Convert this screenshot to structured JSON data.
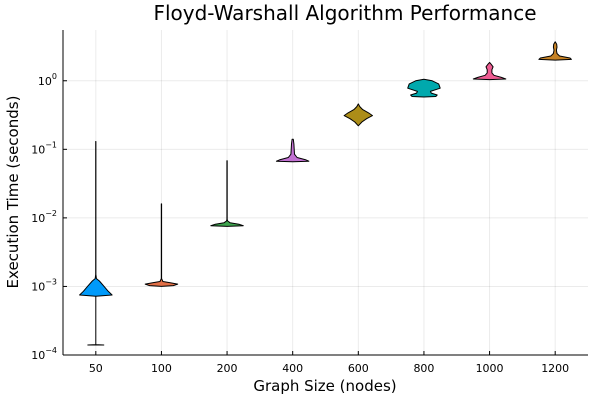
{
  "chart_data": {
    "type": "violin",
    "title": "Floyd-Warshall Algorithm Performance",
    "xlabel": "Graph Size (nodes)",
    "ylabel": "Execution Time (seconds)",
    "yscale": "log10",
    "ylim": [
      0.0001,
      5.5
    ],
    "grid": true,
    "legend": "none",
    "y_ticks": [
      {
        "value": 0.0001,
        "base": "10",
        "exp": "−4"
      },
      {
        "value": 0.001,
        "base": "10",
        "exp": "−3"
      },
      {
        "value": 0.01,
        "base": "10",
        "exp": "−2"
      },
      {
        "value": 0.1,
        "base": "10",
        "exp": "−1"
      },
      {
        "value": 1,
        "base": "10",
        "exp": "0"
      }
    ],
    "categories": [
      "50",
      "100",
      "200",
      "400",
      "600",
      "800",
      "1000",
      "1200"
    ],
    "violins": [
      {
        "category": "50",
        "color": "#009AFA",
        "min": 0.00014,
        "max": 0.13,
        "profile": [
          [
            0.00014,
            0.27
          ],
          [
            0.000142,
            0.0
          ],
          [
            0.00072,
            0.0
          ],
          [
            0.00075,
            0.55
          ],
          [
            0.00085,
            0.42
          ],
          [
            0.001,
            0.28
          ],
          [
            0.0012,
            0.12
          ],
          [
            0.0013,
            0.02
          ],
          [
            0.0015,
            0.004
          ],
          [
            0.13,
            0.004
          ]
        ]
      },
      {
        "category": "100",
        "color": "#E26F46",
        "min": 0.001,
        "max": 0.016,
        "profile": [
          [
            0.001,
            0.0
          ],
          [
            0.00103,
            0.4
          ],
          [
            0.00108,
            0.55
          ],
          [
            0.00113,
            0.3
          ],
          [
            0.00118,
            0.05
          ],
          [
            0.0013,
            0.005
          ],
          [
            0.016,
            0.004
          ]
        ]
      },
      {
        "category": "200",
        "color": "#3EA44E",
        "min": 0.0075,
        "max": 0.068,
        "profile": [
          [
            0.0075,
            0.0
          ],
          [
            0.0077,
            0.55
          ],
          [
            0.0081,
            0.4
          ],
          [
            0.0085,
            0.1
          ],
          [
            0.009,
            0.02
          ],
          [
            0.0095,
            0.006
          ],
          [
            0.068,
            0.004
          ]
        ]
      },
      {
        "category": "400",
        "color": "#C271D2",
        "min": 0.066,
        "max": 0.14,
        "profile": [
          [
            0.066,
            0.0
          ],
          [
            0.067,
            0.55
          ],
          [
            0.07,
            0.45
          ],
          [
            0.076,
            0.15
          ],
          [
            0.085,
            0.06
          ],
          [
            0.1,
            0.05
          ],
          [
            0.12,
            0.04
          ],
          [
            0.14,
            0.02
          ]
        ]
      },
      {
        "category": "600",
        "color": "#AC8D18",
        "min": 0.22,
        "max": 0.46,
        "profile": [
          [
            0.22,
            0.0
          ],
          [
            0.25,
            0.12
          ],
          [
            0.28,
            0.28
          ],
          [
            0.31,
            0.48
          ],
          [
            0.34,
            0.35
          ],
          [
            0.38,
            0.15
          ],
          [
            0.42,
            0.05
          ],
          [
            0.46,
            0.0
          ]
        ]
      },
      {
        "category": "800",
        "color": "#00A9AD",
        "min": 0.58,
        "max": 1.05,
        "profile": [
          [
            0.58,
            0.0
          ],
          [
            0.59,
            0.4
          ],
          [
            0.62,
            0.45
          ],
          [
            0.66,
            0.25
          ],
          [
            0.7,
            0.22
          ],
          [
            0.78,
            0.55
          ],
          [
            0.9,
            0.5
          ],
          [
            1.0,
            0.28
          ],
          [
            1.05,
            0.0
          ]
        ]
      },
      {
        "category": "1000",
        "color": "#ED5D92",
        "min": 1.04,
        "max": 1.85,
        "profile": [
          [
            1.04,
            0.0
          ],
          [
            1.06,
            0.55
          ],
          [
            1.12,
            0.4
          ],
          [
            1.2,
            0.15
          ],
          [
            1.3,
            0.08
          ],
          [
            1.45,
            0.08
          ],
          [
            1.6,
            0.12
          ],
          [
            1.75,
            0.05
          ],
          [
            1.85,
            0.0
          ]
        ]
      },
      {
        "category": "1200",
        "color": "#C68225",
        "min": 2.0,
        "max": 3.7,
        "profile": [
          [
            2.0,
            0.0
          ],
          [
            2.05,
            0.55
          ],
          [
            2.15,
            0.5
          ],
          [
            2.3,
            0.15
          ],
          [
            2.5,
            0.06
          ],
          [
            2.8,
            0.04
          ],
          [
            3.1,
            0.06
          ],
          [
            3.4,
            0.05
          ],
          [
            3.7,
            0.0
          ]
        ]
      }
    ]
  }
}
